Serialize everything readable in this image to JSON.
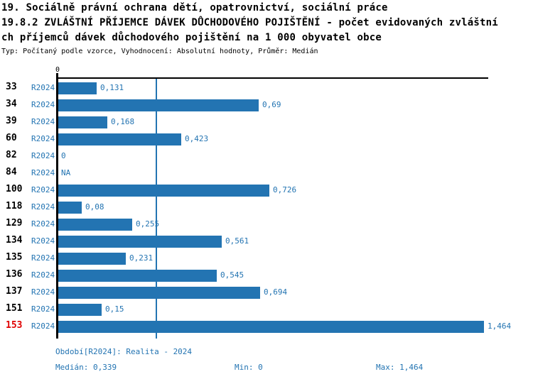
{
  "header": {
    "line1": "19. Sociálně právní ochrana dětí, opatrovnictví, sociální práce",
    "line2": "19.8.2 ZVLÁŠTNÍ PŘÍJEMCE DÁVEK DŮCHODOVÉHO POJIŠTĚNÍ - počet evidovaných zvláštní",
    "line3": "ch příjemců dávek důchodového pojištění na 1 000 obyvatel obce",
    "subtitle": "Typ: Počítaný podle vzorce, Vyhodnocení: Absolutní hodnoty, Průměr: Medián"
  },
  "chart_data": {
    "type": "bar",
    "orientation": "horizontal",
    "title": "19.8.2 ZVLÁŠTNÍ PŘÍJEMCE DÁVEK DŮCHODOVÉHO POJIŠTĚNÍ - počet evidovaných zvláštních příjemců dávek důchodového pojištění na 1 000 obyvatel obce",
    "series_label": "R2024",
    "axis_zero_label": "0",
    "xlim": [
      0,
      1.464
    ],
    "grid": false,
    "median_line_value": 0.339,
    "rows": [
      {
        "id": "33",
        "period": "R2024",
        "value": 0.131,
        "label": "0,131",
        "highlight": false
      },
      {
        "id": "34",
        "period": "R2024",
        "value": 0.69,
        "label": "0,69",
        "highlight": false
      },
      {
        "id": "39",
        "period": "R2024",
        "value": 0.168,
        "label": "0,168",
        "highlight": false
      },
      {
        "id": "60",
        "period": "R2024",
        "value": 0.423,
        "label": "0,423",
        "highlight": false
      },
      {
        "id": "82",
        "period": "R2024",
        "value": 0,
        "label": "0",
        "highlight": false
      },
      {
        "id": "84",
        "period": "R2024",
        "value": null,
        "label": "NA",
        "highlight": false
      },
      {
        "id": "100",
        "period": "R2024",
        "value": 0.726,
        "label": "0,726",
        "highlight": false
      },
      {
        "id": "118",
        "period": "R2024",
        "value": 0.08,
        "label": "0,08",
        "highlight": false
      },
      {
        "id": "129",
        "period": "R2024",
        "value": 0.255,
        "label": "0,255",
        "highlight": false
      },
      {
        "id": "134",
        "period": "R2024",
        "value": 0.561,
        "label": "0,561",
        "highlight": false
      },
      {
        "id": "135",
        "period": "R2024",
        "value": 0.231,
        "label": "0,231",
        "highlight": false
      },
      {
        "id": "136",
        "period": "R2024",
        "value": 0.545,
        "label": "0,545",
        "highlight": false
      },
      {
        "id": "137",
        "period": "R2024",
        "value": 0.694,
        "label": "0,694",
        "highlight": false
      },
      {
        "id": "151",
        "period": "R2024",
        "value": 0.15,
        "label": "0,15",
        "highlight": false
      },
      {
        "id": "153",
        "period": "R2024",
        "value": 1.464,
        "label": "1,464",
        "highlight": true
      }
    ]
  },
  "footer": {
    "period_info": "Období[R2024]: Realita - 2024",
    "median": "Medián: 0,339",
    "min": "Min: 0",
    "max": "Max: 1,464"
  },
  "colors": {
    "bar_blue": "#2374b2",
    "text_blue": "#2374b2",
    "highlight_red": "#e00000",
    "axis_black": "#000000"
  }
}
